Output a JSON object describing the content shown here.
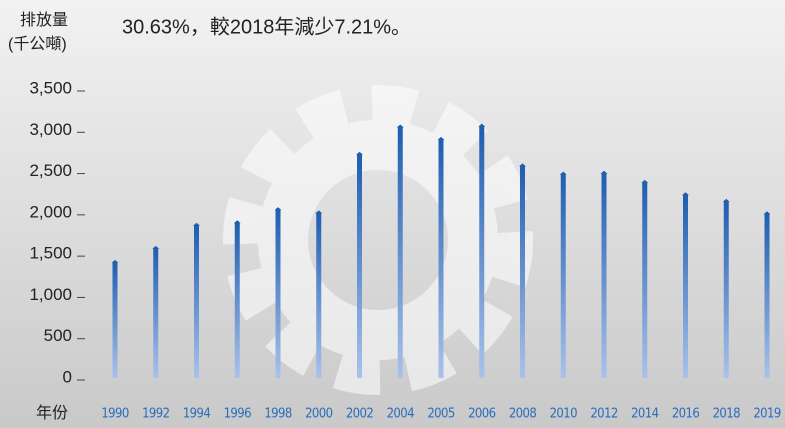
{
  "chart_data": {
    "type": "bar",
    "title": "30.63%，較2018年減少7.21%。",
    "ylabel_lines": [
      "排放量",
      "(千公噸)"
    ],
    "xlabel": "年份",
    "categories": [
      "1990",
      "1992",
      "1994",
      "1996",
      "1998",
      "2000",
      "2002",
      "2004",
      "2005",
      "2006",
      "2008",
      "2010",
      "2012",
      "2014",
      "2016",
      "2018",
      "2019"
    ],
    "values": [
      1430,
      1600,
      1880,
      1910,
      2070,
      2030,
      2740,
      3070,
      2920,
      3080,
      2600,
      2500,
      2510,
      2400,
      2250,
      2170,
      2020
    ],
    "color": "#1f5fb0",
    "ylim": [
      0,
      3500
    ],
    "yticks": [
      0,
      500,
      {
        "value": 1000,
        "label": "1,000"
      },
      {
        "value": 1500,
        "label": "1,500"
      },
      {
        "value": 2000,
        "label": "2,000"
      },
      {
        "value": 2500,
        "label": "2,500"
      },
      {
        "value": 3000,
        "label": "3,000"
      },
      {
        "value": 3500,
        "label": "3,500"
      }
    ],
    "grid": false
  }
}
